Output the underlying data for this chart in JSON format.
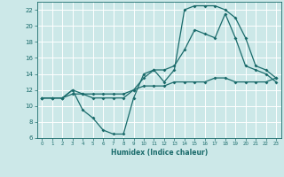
{
  "xlabel": "Humidex (Indice chaleur)",
  "background_color": "#cce8e8",
  "grid_color": "#ffffff",
  "line_color": "#1a6b6b",
  "xlim": [
    -0.5,
    23.5
  ],
  "ylim": [
    6,
    23
  ],
  "xticks": [
    0,
    1,
    2,
    3,
    4,
    5,
    6,
    7,
    8,
    9,
    10,
    11,
    12,
    13,
    14,
    15,
    16,
    17,
    18,
    19,
    20,
    21,
    22,
    23
  ],
  "yticks": [
    6,
    8,
    10,
    12,
    14,
    16,
    18,
    20,
    22
  ],
  "line1_x": [
    0,
    1,
    2,
    3,
    4,
    5,
    6,
    7,
    8,
    9,
    10,
    11,
    12,
    13,
    14,
    15,
    16,
    17,
    18,
    19,
    20,
    21,
    22,
    23
  ],
  "line1_y": [
    11,
    11,
    11,
    12,
    9.5,
    8.5,
    7,
    6.5,
    6.5,
    11,
    14,
    14.5,
    13,
    14.5,
    22,
    22.5,
    22.5,
    22.5,
    22,
    21,
    18.5,
    15,
    14.5,
    13.5
  ],
  "line2_x": [
    0,
    1,
    2,
    3,
    4,
    5,
    6,
    7,
    8,
    9,
    10,
    11,
    12,
    13,
    14,
    15,
    16,
    17,
    18,
    19,
    20,
    21,
    22,
    23
  ],
  "line2_y": [
    11,
    11,
    11,
    11.5,
    11.5,
    11.5,
    11.5,
    11.5,
    11.5,
    12,
    12.5,
    12.5,
    12.5,
    13,
    13,
    13,
    13,
    13.5,
    13.5,
    13,
    13,
    13,
    13,
    13.5
  ],
  "line3_x": [
    0,
    1,
    2,
    3,
    4,
    5,
    6,
    7,
    8,
    9,
    10,
    11,
    12,
    13,
    14,
    15,
    16,
    17,
    18,
    19,
    20,
    21,
    22,
    23
  ],
  "line3_y": [
    11,
    11,
    11,
    12,
    11.5,
    11,
    11,
    11,
    11,
    12,
    13.5,
    14.5,
    14.5,
    15,
    17,
    19.5,
    19,
    18.5,
    21.5,
    18.5,
    15,
    14.5,
    14,
    13
  ]
}
